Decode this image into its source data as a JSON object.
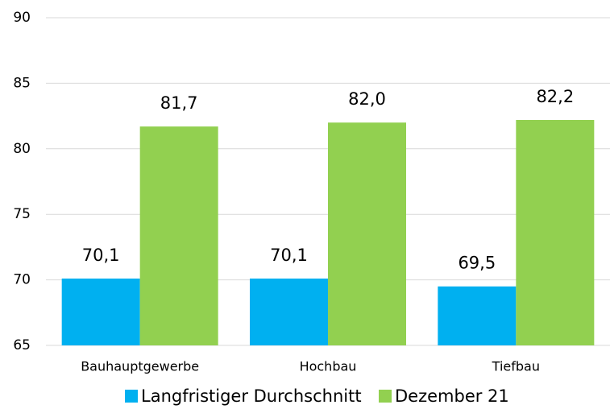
{
  "chart_data": {
    "type": "bar",
    "categories": [
      "Bauhauptgewerbe",
      "Hochbau",
      "Tiefbau"
    ],
    "series": [
      {
        "name": "Langfristiger Durchschnitt",
        "color": "#00b0f0",
        "values": [
          70.1,
          70.1,
          69.5
        ],
        "value_labels": [
          "70,1",
          "70,1",
          "69,5"
        ]
      },
      {
        "name": "Dezember 21",
        "color": "#92d050",
        "values": [
          81.7,
          82.0,
          82.2
        ],
        "value_labels": [
          "81,7",
          "82,0",
          "82,2"
        ]
      }
    ],
    "ylim": [
      65,
      90
    ],
    "yticks": [
      65,
      70,
      75,
      80,
      85,
      90
    ],
    "grid": true,
    "legend": "bottom"
  }
}
